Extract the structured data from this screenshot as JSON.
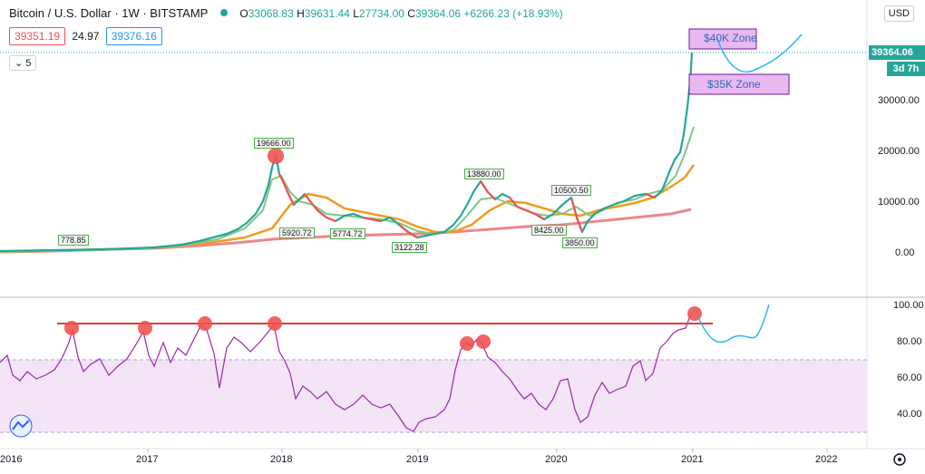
{
  "header": {
    "title": "Bitcoin / U.S. Dollar · 1W · BITSTAMP",
    "ohlc": {
      "o_label": "O",
      "o": "33068.83",
      "h_label": "H",
      "h": "39631.44",
      "l_label": "L",
      "l": "27734.00",
      "c_label": "C",
      "c": "39364.06",
      "change": "+6266.23 (+18.93%)"
    },
    "bid": "39351.19",
    "spread": "24.97",
    "ask": "39376.16",
    "indicator_count": "5"
  },
  "currency_button": "USD",
  "price_axis": {
    "ticks": [
      "30000.00",
      "20000.00",
      "10000.00",
      "0.00"
    ],
    "last_price": "39364.06",
    "countdown": "3d 7h"
  },
  "rsi_axis": {
    "ticks": [
      "100.00",
      "80.00",
      "60.00",
      "40.00"
    ]
  },
  "time_axis": {
    "ticks": [
      "2016",
      "2017",
      "2018",
      "2019",
      "2020",
      "2021",
      "2022"
    ]
  },
  "annotations": {
    "zone_40k": "$40K Zone",
    "zone_35k": "$35K Zone",
    "price_labels": [
      "778.85",
      "19666.00",
      "5920.72",
      "5774.72",
      "3122.28",
      "13880.00",
      "10500.50",
      "8425.00",
      "3850.00"
    ]
  },
  "colors": {
    "up": "#26a69a",
    "down": "#ef5350",
    "ma_fast": "#81c784",
    "ma_mid": "#f29b1d",
    "ma_slow": "#e57373",
    "rsi": "#9c27b0",
    "rsi_band": "#f3e5f5",
    "resistance": "#e53935",
    "projection": "#29b6f6"
  }
}
